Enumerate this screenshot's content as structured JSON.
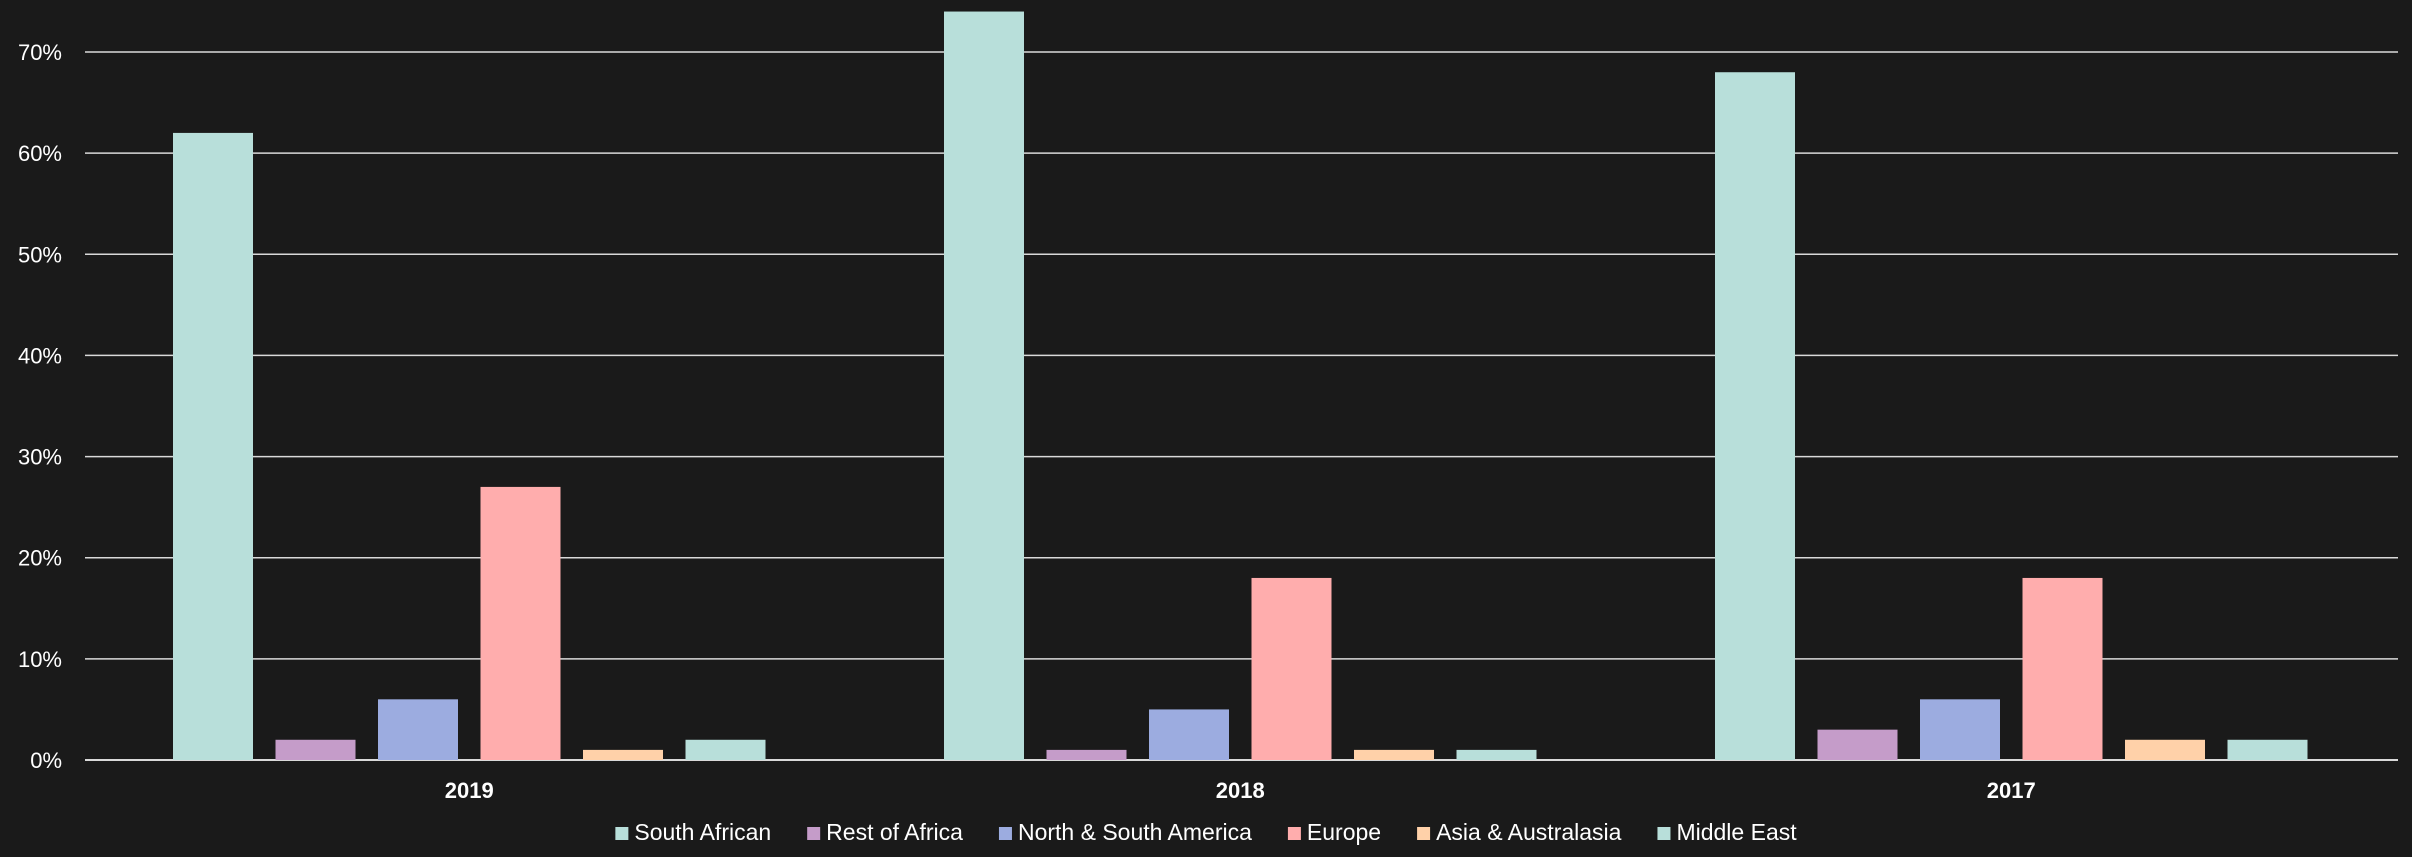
{
  "chart_data": {
    "type": "bar",
    "title": "",
    "xlabel": "",
    "ylabel": "",
    "categories": [
      "2019",
      "2018",
      "2017"
    ],
    "ylim": [
      0,
      70
    ],
    "yticks": [
      0,
      10,
      20,
      30,
      40,
      50,
      60,
      70
    ],
    "ytick_labels": [
      "0%",
      "10%",
      "20%",
      "30%",
      "40%",
      "50%",
      "60%",
      "70%"
    ],
    "grid": true,
    "legend_position": "bottom",
    "series": [
      {
        "name": "South African",
        "color": "#b8dfda",
        "values": [
          62,
          74,
          68
        ]
      },
      {
        "name": "Rest of Africa",
        "color": "#c59cc9",
        "values": [
          2,
          1,
          3
        ]
      },
      {
        "name": "North & South America",
        "color": "#9cace0",
        "values": [
          6,
          5,
          6
        ]
      },
      {
        "name": "Europe",
        "color": "#ffadad",
        "values": [
          27,
          18,
          18
        ]
      },
      {
        "name": "Asia & Australasia",
        "color": "#ffd1a9",
        "values": [
          1,
          1,
          2
        ]
      },
      {
        "name": "Middle East",
        "color": "#b8dfda",
        "values": [
          2,
          1,
          2
        ]
      }
    ]
  }
}
